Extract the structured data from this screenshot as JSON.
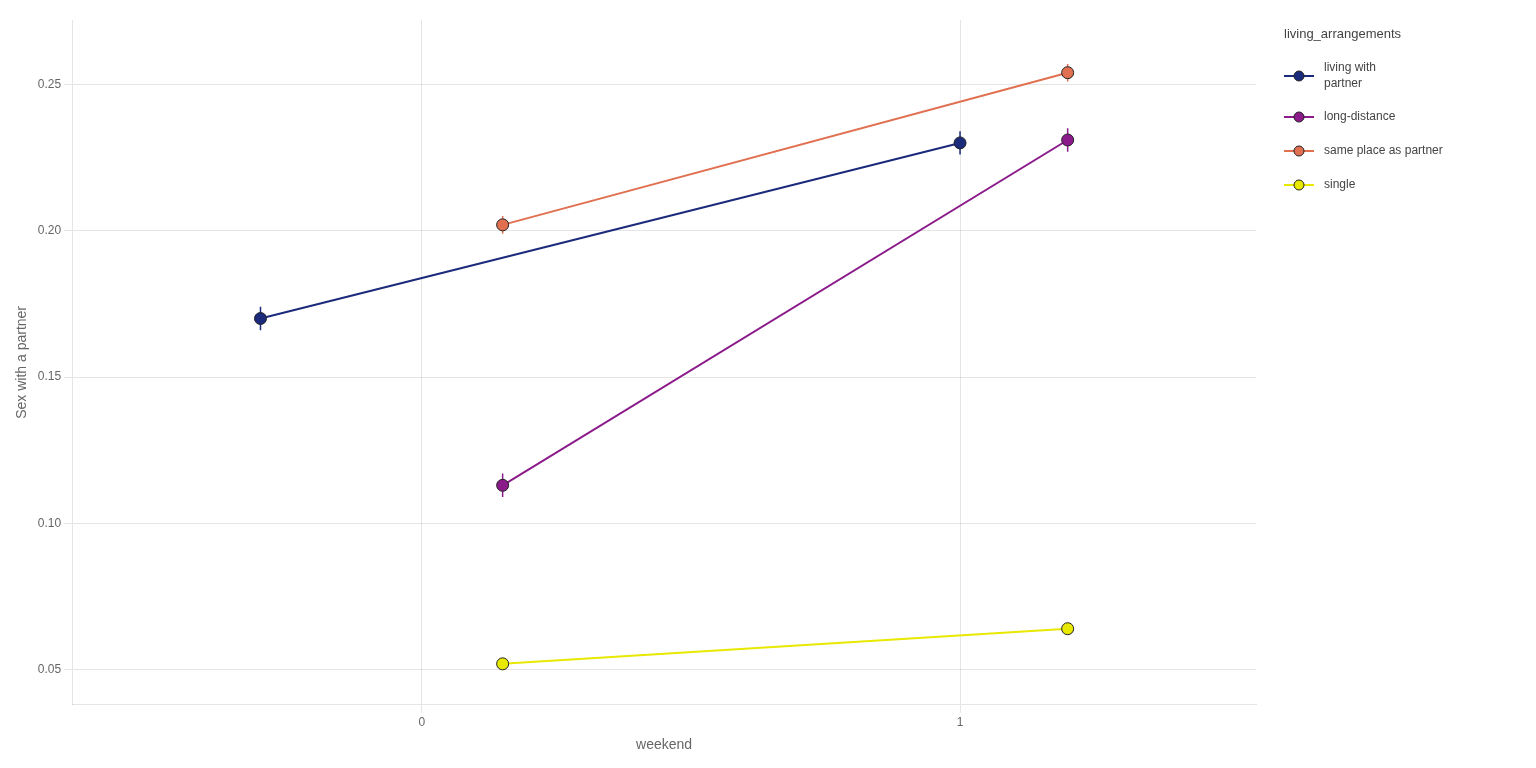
{
  "chart_data": {
    "type": "line",
    "x_label": "weekend",
    "y_label": "Sex with a partner",
    "legend_title": "living_arrangements",
    "series": [
      {
        "name": "living with\npartner",
        "color": "#1b2a7b",
        "x": [
          -0.3,
          1.0
        ],
        "values": [
          0.17,
          0.23
        ],
        "yerr": [
          0.004,
          0.004
        ]
      },
      {
        "name": "long-distance",
        "color": "#8b1a8b",
        "x": [
          0.15,
          1.2
        ],
        "values": [
          0.113,
          0.231
        ],
        "yerr": [
          0.004,
          0.004
        ]
      },
      {
        "name": "same place as partner",
        "color": "#e07050",
        "x": [
          0.15,
          1.2
        ],
        "values": [
          0.202,
          0.254
        ],
        "yerr": [
          0.003,
          0.003
        ]
      },
      {
        "name": "single",
        "color": "#e8e800",
        "x": [
          0.15,
          1.2
        ],
        "values": [
          0.052,
          0.064
        ],
        "yerr": [
          0.002,
          0.002
        ]
      }
    ],
    "xlim": [
      -0.65,
      1.55
    ],
    "ylim": [
      0.038,
      0.272
    ],
    "xticks": [
      0,
      1
    ],
    "yticks": [
      0.05,
      {
        "value": 0.1,
        "label": "0.10"
      },
      0.15,
      {
        "value": 0.2,
        "label": "0.20"
      },
      0.25
    ],
    "grid": true,
    "legend": "right",
    "marker": "circle"
  }
}
